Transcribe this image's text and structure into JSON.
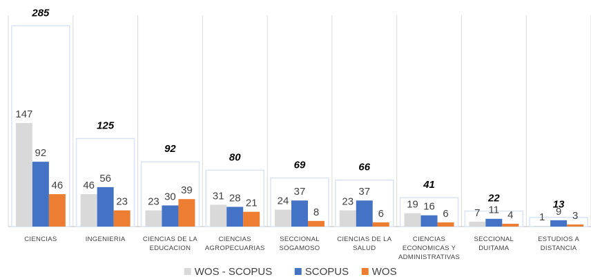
{
  "chart_data": {
    "type": "bar",
    "categories": [
      "CIENCIAS",
      "INGENIERIA",
      "CIENCIAS DE LA EDUCACION",
      "CIENCIAS AGROPECUARIAS",
      "SECCIONAL SOGAMOSO",
      "CIENCIAS DE LA SALUD",
      "CIENCIAS ECONOMICAS Y ADMINISTRATIVAS",
      "SECCIONAL DUITAMA",
      "ESTUDIOS A DISTANCIA"
    ],
    "series": [
      {
        "name": "WOS - SCOPUS",
        "color": "#d9d9d9",
        "values": [
          147,
          46,
          23,
          31,
          24,
          23,
          19,
          7,
          1
        ]
      },
      {
        "name": "SCOPUS",
        "color": "#4472c4",
        "values": [
          92,
          56,
          30,
          28,
          37,
          37,
          16,
          11,
          9
        ]
      },
      {
        "name": "WOS",
        "color": "#ed7d31",
        "values": [
          46,
          23,
          39,
          21,
          8,
          6,
          6,
          4,
          3
        ]
      }
    ],
    "totals": [
      285,
      125,
      92,
      80,
      69,
      66,
      41,
      22,
      13
    ],
    "ylim": [
      0,
      300
    ],
    "legend": "bottom"
  }
}
